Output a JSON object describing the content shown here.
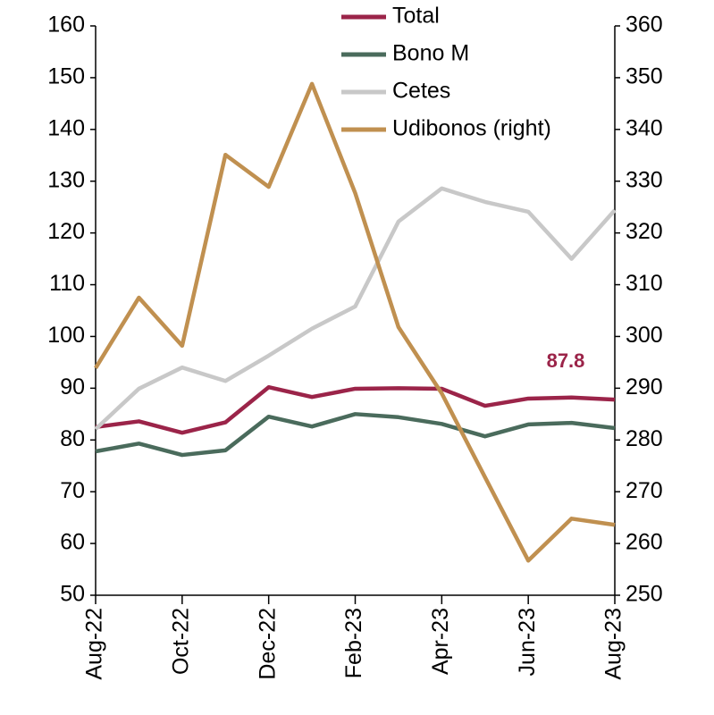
{
  "chart_data": {
    "type": "line",
    "categories": [
      "Aug-22",
      null,
      "Oct-22",
      null,
      "Dec-22",
      null,
      "Feb-23",
      null,
      "Apr-23",
      null,
      "Jun-23",
      null,
      "Aug-23"
    ],
    "series": [
      {
        "name": "Total",
        "color": "#9b2449",
        "values": [
          82.5,
          83.6,
          81.4,
          83.4,
          90.2,
          88.3,
          89.9,
          90.0,
          89.9,
          86.6,
          88.0,
          88.2,
          87.8
        ]
      },
      {
        "name": "Bono M",
        "color": "#4a6b5c",
        "values": [
          77.8,
          79.3,
          77.1,
          78.0,
          84.5,
          82.6,
          85.0,
          84.4,
          83.1,
          80.7,
          83.0,
          83.3,
          82.3
        ]
      },
      {
        "name": "Cetes",
        "color": "#c8c8c8",
        "values": [
          82.1,
          89.9,
          94.0,
          91.4,
          96.3,
          101.5,
          105.8,
          122.2,
          128.6,
          126.0,
          124.1,
          115.0,
          124.4
        ]
      },
      {
        "name": "Udibonos (right)",
        "color": "#c09050",
        "axis": "y2",
        "values": [
          293.9,
          307.5,
          298.2,
          335.1,
          328.9,
          348.8,
          327.7,
          301.8,
          289.0,
          272.8,
          256.7,
          264.8,
          263.6
        ]
      }
    ],
    "ylim": [
      50,
      160
    ],
    "yticks": [
      50,
      60,
      70,
      80,
      90,
      100,
      110,
      120,
      130,
      140,
      150,
      160
    ],
    "y2lim": [
      250,
      360
    ],
    "y2ticks": [
      250,
      260,
      270,
      280,
      290,
      300,
      310,
      320,
      330,
      340,
      350,
      360
    ],
    "legend": "top",
    "grid": false
  }
}
